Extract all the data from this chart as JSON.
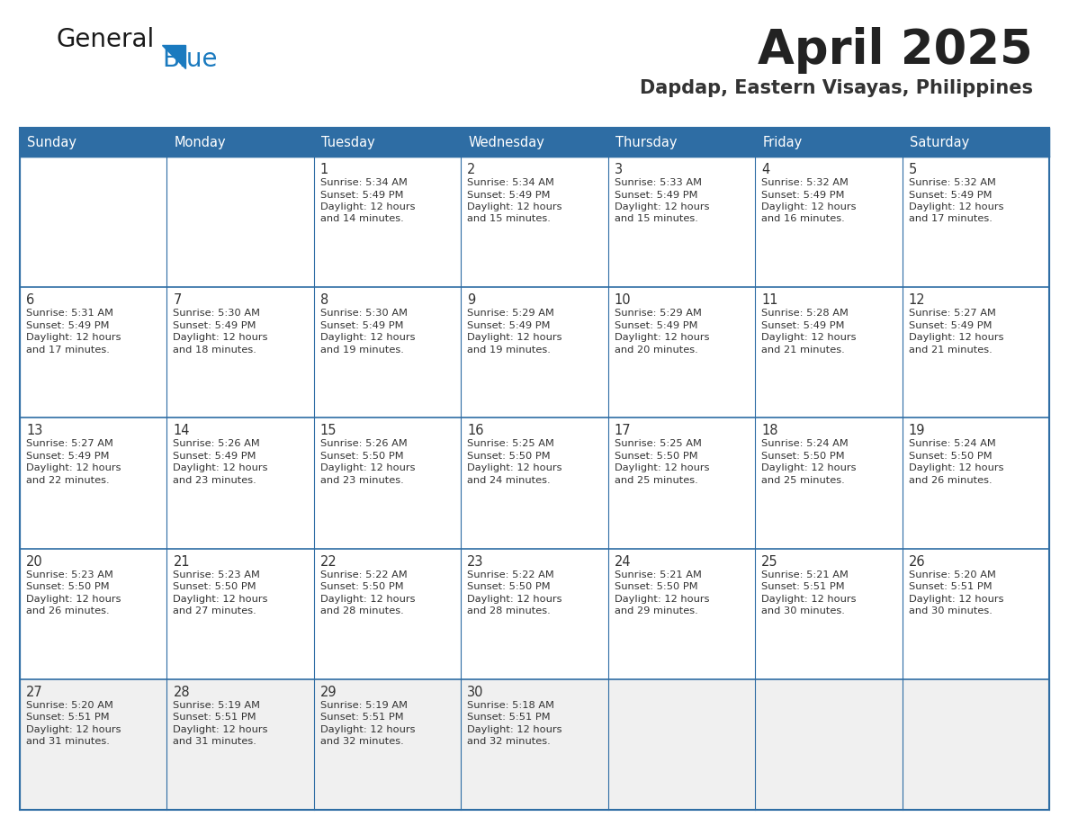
{
  "title": "April 2025",
  "subtitle": "Dapdap, Eastern Visayas, Philippines",
  "days_of_week": [
    "Sunday",
    "Monday",
    "Tuesday",
    "Wednesday",
    "Thursday",
    "Friday",
    "Saturday"
  ],
  "header_bg": "#2E6DA4",
  "header_text": "#FFFFFF",
  "row_bg_white": "#FFFFFF",
  "row_bg_light": "#F0F0F0",
  "cell_text_color": "#333333",
  "day_num_color": "#333333",
  "line_color": "#2E6DA4",
  "title_color": "#222222",
  "subtitle_color": "#333333",
  "logo_general_color": "#1a1a1a",
  "logo_blue_color": "#1a7abf",
  "calendar_data": [
    [
      {
        "day": 0,
        "sunrise": "",
        "sunset": "",
        "daylight": ""
      },
      {
        "day": 0,
        "sunrise": "",
        "sunset": "",
        "daylight": ""
      },
      {
        "day": 1,
        "sunrise": "5:34 AM",
        "sunset": "5:49 PM",
        "daylight": "12 hours and 14 minutes."
      },
      {
        "day": 2,
        "sunrise": "5:34 AM",
        "sunset": "5:49 PM",
        "daylight": "12 hours and 15 minutes."
      },
      {
        "day": 3,
        "sunrise": "5:33 AM",
        "sunset": "5:49 PM",
        "daylight": "12 hours and 15 minutes."
      },
      {
        "day": 4,
        "sunrise": "5:32 AM",
        "sunset": "5:49 PM",
        "daylight": "12 hours and 16 minutes."
      },
      {
        "day": 5,
        "sunrise": "5:32 AM",
        "sunset": "5:49 PM",
        "daylight": "12 hours and 17 minutes."
      }
    ],
    [
      {
        "day": 6,
        "sunrise": "5:31 AM",
        "sunset": "5:49 PM",
        "daylight": "12 hours and 17 minutes."
      },
      {
        "day": 7,
        "sunrise": "5:30 AM",
        "sunset": "5:49 PM",
        "daylight": "12 hours and 18 minutes."
      },
      {
        "day": 8,
        "sunrise": "5:30 AM",
        "sunset": "5:49 PM",
        "daylight": "12 hours and 19 minutes."
      },
      {
        "day": 9,
        "sunrise": "5:29 AM",
        "sunset": "5:49 PM",
        "daylight": "12 hours and 19 minutes."
      },
      {
        "day": 10,
        "sunrise": "5:29 AM",
        "sunset": "5:49 PM",
        "daylight": "12 hours and 20 minutes."
      },
      {
        "day": 11,
        "sunrise": "5:28 AM",
        "sunset": "5:49 PM",
        "daylight": "12 hours and 21 minutes."
      },
      {
        "day": 12,
        "sunrise": "5:27 AM",
        "sunset": "5:49 PM",
        "daylight": "12 hours and 21 minutes."
      }
    ],
    [
      {
        "day": 13,
        "sunrise": "5:27 AM",
        "sunset": "5:49 PM",
        "daylight": "12 hours and 22 minutes."
      },
      {
        "day": 14,
        "sunrise": "5:26 AM",
        "sunset": "5:49 PM",
        "daylight": "12 hours and 23 minutes."
      },
      {
        "day": 15,
        "sunrise": "5:26 AM",
        "sunset": "5:50 PM",
        "daylight": "12 hours and 23 minutes."
      },
      {
        "day": 16,
        "sunrise": "5:25 AM",
        "sunset": "5:50 PM",
        "daylight": "12 hours and 24 minutes."
      },
      {
        "day": 17,
        "sunrise": "5:25 AM",
        "sunset": "5:50 PM",
        "daylight": "12 hours and 25 minutes."
      },
      {
        "day": 18,
        "sunrise": "5:24 AM",
        "sunset": "5:50 PM",
        "daylight": "12 hours and 25 minutes."
      },
      {
        "day": 19,
        "sunrise": "5:24 AM",
        "sunset": "5:50 PM",
        "daylight": "12 hours and 26 minutes."
      }
    ],
    [
      {
        "day": 20,
        "sunrise": "5:23 AM",
        "sunset": "5:50 PM",
        "daylight": "12 hours and 26 minutes."
      },
      {
        "day": 21,
        "sunrise": "5:23 AM",
        "sunset": "5:50 PM",
        "daylight": "12 hours and 27 minutes."
      },
      {
        "day": 22,
        "sunrise": "5:22 AM",
        "sunset": "5:50 PM",
        "daylight": "12 hours and 28 minutes."
      },
      {
        "day": 23,
        "sunrise": "5:22 AM",
        "sunset": "5:50 PM",
        "daylight": "12 hours and 28 minutes."
      },
      {
        "day": 24,
        "sunrise": "5:21 AM",
        "sunset": "5:50 PM",
        "daylight": "12 hours and 29 minutes."
      },
      {
        "day": 25,
        "sunrise": "5:21 AM",
        "sunset": "5:51 PM",
        "daylight": "12 hours and 30 minutes."
      },
      {
        "day": 26,
        "sunrise": "5:20 AM",
        "sunset": "5:51 PM",
        "daylight": "12 hours and 30 minutes."
      }
    ],
    [
      {
        "day": 27,
        "sunrise": "5:20 AM",
        "sunset": "5:51 PM",
        "daylight": "12 hours and 31 minutes."
      },
      {
        "day": 28,
        "sunrise": "5:19 AM",
        "sunset": "5:51 PM",
        "daylight": "12 hours and 31 minutes."
      },
      {
        "day": 29,
        "sunrise": "5:19 AM",
        "sunset": "5:51 PM",
        "daylight": "12 hours and 32 minutes."
      },
      {
        "day": 30,
        "sunrise": "5:18 AM",
        "sunset": "5:51 PM",
        "daylight": "12 hours and 32 minutes."
      },
      {
        "day": 0,
        "sunrise": "",
        "sunset": "",
        "daylight": ""
      },
      {
        "day": 0,
        "sunrise": "",
        "sunset": "",
        "daylight": ""
      },
      {
        "day": 0,
        "sunrise": "",
        "sunset": "",
        "daylight": ""
      }
    ]
  ]
}
